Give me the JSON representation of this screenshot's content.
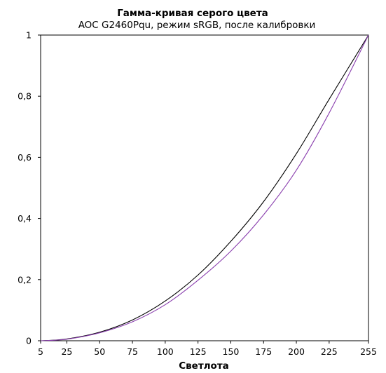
{
  "chart_data": {
    "type": "line",
    "title": "Гамма-кривая  серого цвета",
    "subtitle": "AOC G2460Pqu, режим sRGB, после калибровки",
    "xlabel": "Светлота",
    "ylabel": "",
    "x": [
      5,
      25,
      50,
      75,
      100,
      125,
      150,
      175,
      200,
      225,
      255
    ],
    "x_tick_labels": [
      "5",
      "25",
      "50",
      "75",
      "100",
      "125",
      "150",
      "175",
      "200",
      "225",
      "255"
    ],
    "y_tick_labels": [
      "0",
      "0,2",
      "0,4",
      "0,6",
      "0,8",
      "1"
    ],
    "y_ticks": [
      0,
      0.2,
      0.4,
      0.6,
      0.8,
      1
    ],
    "xlim": [
      5,
      255
    ],
    "ylim": [
      0,
      1
    ],
    "grid": false,
    "legend": "none",
    "series": [
      {
        "color": "#000000",
        "values": [
          0.0,
          0.006,
          0.028,
          0.068,
          0.13,
          0.215,
          0.325,
          0.455,
          0.612,
          0.79,
          1.0
        ]
      },
      {
        "color": "#8a3fae",
        "values": [
          0.0,
          0.005,
          0.026,
          0.062,
          0.118,
          0.198,
          0.293,
          0.412,
          0.558,
          0.745,
          1.0
        ]
      }
    ]
  }
}
